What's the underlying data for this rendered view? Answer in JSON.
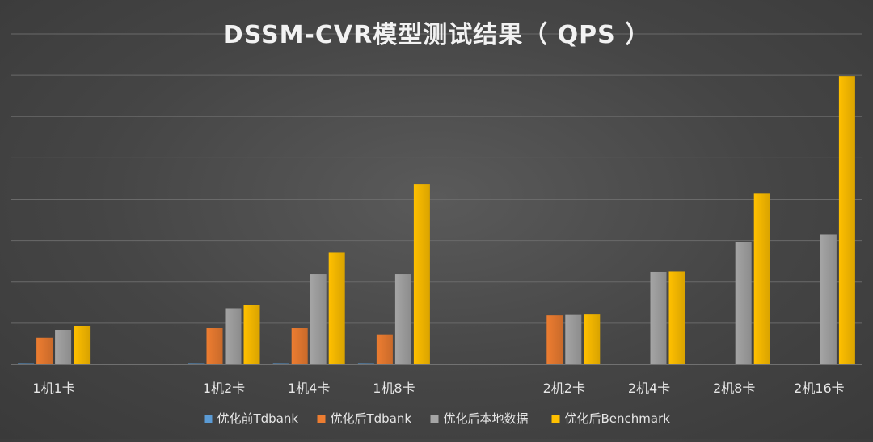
{
  "chart_data": {
    "type": "bar",
    "title": "DSSM-CVR模型测试结果（ QPS ）",
    "categories": [
      "1机1卡",
      "",
      "1机2卡",
      "1机4卡",
      "1机8卡",
      "",
      "2机2卡",
      "2机4卡",
      "2机8卡",
      "2机16卡"
    ],
    "series": [
      {
        "name": "优化前Tdbank",
        "color": "#5b9bd5",
        "values": [
          0.3,
          null,
          0.3,
          0.3,
          0.3,
          null,
          null,
          null,
          null,
          null
        ]
      },
      {
        "name": "优化后Tdbank",
        "color": "#ed7d31",
        "values": [
          6.5,
          null,
          8.8,
          8.8,
          7.3,
          null,
          11.9,
          null,
          null,
          null
        ]
      },
      {
        "name": "优化后本地数据",
        "color": "#a5a5a5",
        "values": [
          8.3,
          null,
          13.6,
          21.9,
          21.9,
          null,
          12.0,
          22.5,
          29.7,
          31.4
        ]
      },
      {
        "name": "优化后Benchmark",
        "color": "#ffc000",
        "values": [
          9.2,
          null,
          14.4,
          27.1,
          43.6,
          null,
          12.1,
          22.6,
          41.4,
          69.8
        ]
      }
    ],
    "ylim": [
      0,
      80
    ],
    "gridlines": true,
    "axis_labels_visible": false,
    "legend_position": "bottom"
  }
}
